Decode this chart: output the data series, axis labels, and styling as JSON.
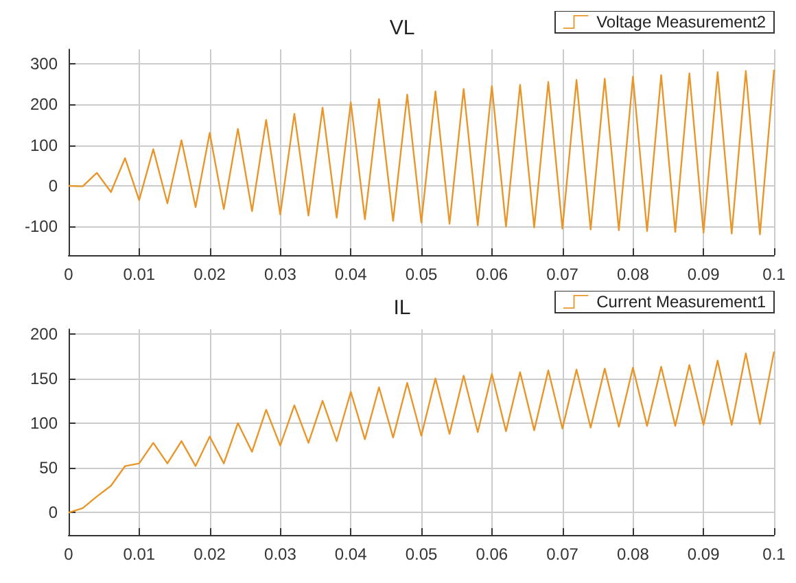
{
  "chart_data": [
    {
      "type": "line",
      "title": "VL",
      "x": [
        0,
        0.002,
        0.004,
        0.006,
        0.008,
        0.01,
        0.012,
        0.014,
        0.016,
        0.018,
        0.02,
        0.022,
        0.024,
        0.026,
        0.028,
        0.03,
        0.032,
        0.034,
        0.036,
        0.038,
        0.04,
        0.042,
        0.044,
        0.046,
        0.048,
        0.05,
        0.052,
        0.054,
        0.056,
        0.058,
        0.06,
        0.062,
        0.064,
        0.066,
        0.068,
        0.07,
        0.072,
        0.074,
        0.076,
        0.078,
        0.08,
        0.082,
        0.084,
        0.086,
        0.088,
        0.09,
        0.092,
        0.094,
        0.096,
        0.098,
        0.1
      ],
      "series": [
        {
          "name": "Voltage Measurement2",
          "color": "#e8962a",
          "values": [
            0,
            -1,
            32,
            -15,
            68,
            -35,
            90,
            -43,
            112,
            -52,
            130,
            -57,
            140,
            -62,
            162,
            -70,
            177,
            -73,
            192,
            -78,
            205,
            -82,
            213,
            -86,
            224,
            -90,
            232,
            -93,
            238,
            -97,
            245,
            -100,
            248,
            -102,
            255,
            -105,
            260,
            -107,
            263,
            -109,
            268,
            -111,
            272,
            -113,
            276,
            -115,
            279,
            -117,
            282,
            -119,
            285
          ]
        }
      ],
      "xlim": [
        0,
        0.1
      ],
      "xticks": [
        0,
        0.01,
        0.02,
        0.03,
        0.04,
        0.05,
        0.06,
        0.07,
        0.08,
        0.09,
        0.1
      ],
      "ylim": [
        -170,
        335
      ],
      "yticks": [
        -100,
        0,
        100,
        200,
        300
      ],
      "grid": true,
      "legend": "top right"
    },
    {
      "type": "line",
      "title": "IL",
      "x": [
        0,
        0.002,
        0.004,
        0.006,
        0.008,
        0.01,
        0.012,
        0.014,
        0.016,
        0.018,
        0.02,
        0.022,
        0.024,
        0.026,
        0.028,
        0.03,
        0.032,
        0.034,
        0.036,
        0.038,
        0.04,
        0.042,
        0.044,
        0.046,
        0.048,
        0.05,
        0.052,
        0.054,
        0.056,
        0.058,
        0.06,
        0.062,
        0.064,
        0.066,
        0.068,
        0.07,
        0.072,
        0.074,
        0.076,
        0.078,
        0.08,
        0.082,
        0.084,
        0.086,
        0.088,
        0.09,
        0.092,
        0.094,
        0.096,
        0.098,
        0.1
      ],
      "series": [
        {
          "name": "Current Measurement1",
          "color": "#e8962a",
          "values": [
            0,
            5,
            18,
            30,
            52,
            55,
            78,
            55,
            80,
            52,
            85,
            55,
            100,
            68,
            115,
            75,
            120,
            78,
            125,
            80,
            135,
            82,
            140,
            84,
            145,
            86,
            150,
            88,
            153,
            90,
            155,
            91,
            157,
            92,
            159,
            94,
            160,
            95,
            161,
            96,
            162,
            97,
            163,
            97,
            165,
            98,
            170,
            98,
            178,
            99,
            180
          ]
        }
      ],
      "xlim": [
        0,
        0.1
      ],
      "xticks": [
        0,
        0.01,
        0.02,
        0.03,
        0.04,
        0.05,
        0.06,
        0.07,
        0.08,
        0.09,
        0.1
      ],
      "ylim": [
        -25,
        205
      ],
      "yticks": [
        0,
        50,
        100,
        150,
        200
      ],
      "grid": true,
      "legend": "top right"
    }
  ]
}
